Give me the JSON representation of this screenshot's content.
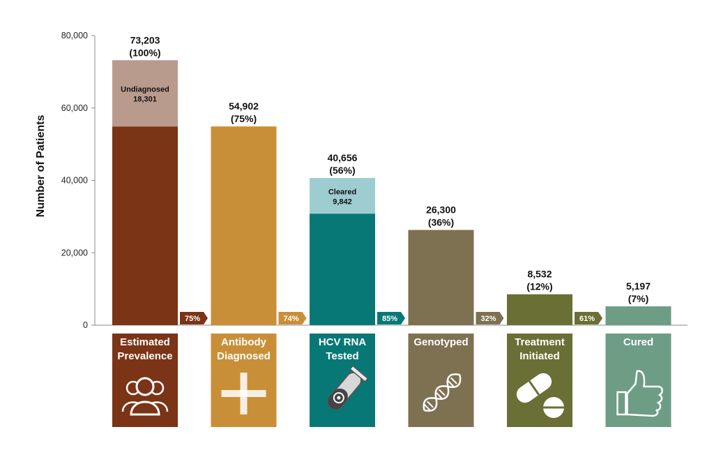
{
  "chart_data": {
    "type": "bar",
    "ylabel": "Number of Patients",
    "ylim": [
      0,
      80000
    ],
    "yticks": [
      0,
      20000,
      40000,
      60000,
      80000
    ],
    "ytick_labels": [
      "0",
      "20,000",
      "40,000",
      "60,000",
      "80,000"
    ],
    "categories": [
      {
        "name": "Estimated Prevalence",
        "name_lines": [
          "Estimated",
          "Prevalence"
        ],
        "value": 73203,
        "value_label": "73,203",
        "percent_label": "(100%)",
        "color": "#7b3416",
        "icon": "people-group-icon",
        "segments": [
          {
            "from": 0,
            "to": 54902,
            "color": "#7b3416"
          },
          {
            "from": 54902,
            "to": 73203,
            "color": "#b99b8e",
            "label": "Undiagnosed",
            "value_label": "18,301"
          }
        ]
      },
      {
        "name": "Antibody Diagnosed",
        "name_lines": [
          "Antibody",
          "Diagnosed"
        ],
        "value": 54902,
        "value_label": "54,902",
        "percent_label": "(75%)",
        "color": "#c98f38",
        "icon": "plus-cross-icon",
        "segments": [
          {
            "from": 0,
            "to": 54902,
            "color": "#c98f38"
          }
        ]
      },
      {
        "name": "HCV RNA Tested",
        "name_lines": [
          "HCV RNA",
          "Tested"
        ],
        "value": 40656,
        "value_label": "40,656",
        "percent_label": "(56%)",
        "color": "#087876",
        "icon": "test-tube-virus-icon",
        "segments": [
          {
            "from": 0,
            "to": 30814,
            "color": "#087876"
          },
          {
            "from": 30814,
            "to": 40656,
            "color": "#9dcdd0",
            "label": "Cleared",
            "value_label": "9,842"
          }
        ]
      },
      {
        "name": "Genotyped",
        "name_lines": [
          "Genotyped"
        ],
        "value": 26300,
        "value_label": "26,300",
        "percent_label": "(36%)",
        "color": "#7e7151",
        "icon": "dna-helix-icon",
        "segments": [
          {
            "from": 0,
            "to": 26300,
            "color": "#7e7151"
          }
        ]
      },
      {
        "name": "Treatment Initiated",
        "name_lines": [
          "Treatment",
          "Initiated"
        ],
        "value": 8532,
        "value_label": "8,532",
        "percent_label": "(12%)",
        "color": "#6a6f35",
        "icon": "pills-icon",
        "segments": [
          {
            "from": 0,
            "to": 8532,
            "color": "#6a6f35"
          }
        ]
      },
      {
        "name": "Cured",
        "name_lines": [
          "Cured"
        ],
        "value": 5197,
        "value_label": "5,197",
        "percent_label": "(7%)",
        "color": "#6d9d85",
        "icon": "thumbs-up-icon",
        "segments": [
          {
            "from": 0,
            "to": 5197,
            "color": "#6d9d85"
          }
        ]
      }
    ],
    "conversions": [
      {
        "label": "75%",
        "color": "#7b3416"
      },
      {
        "label": "74%",
        "color": "#c98f38"
      },
      {
        "label": "85%",
        "color": "#087876"
      },
      {
        "label": "32%",
        "color": "#7e7151"
      },
      {
        "label": "61%",
        "color": "#6a6f35"
      }
    ]
  }
}
